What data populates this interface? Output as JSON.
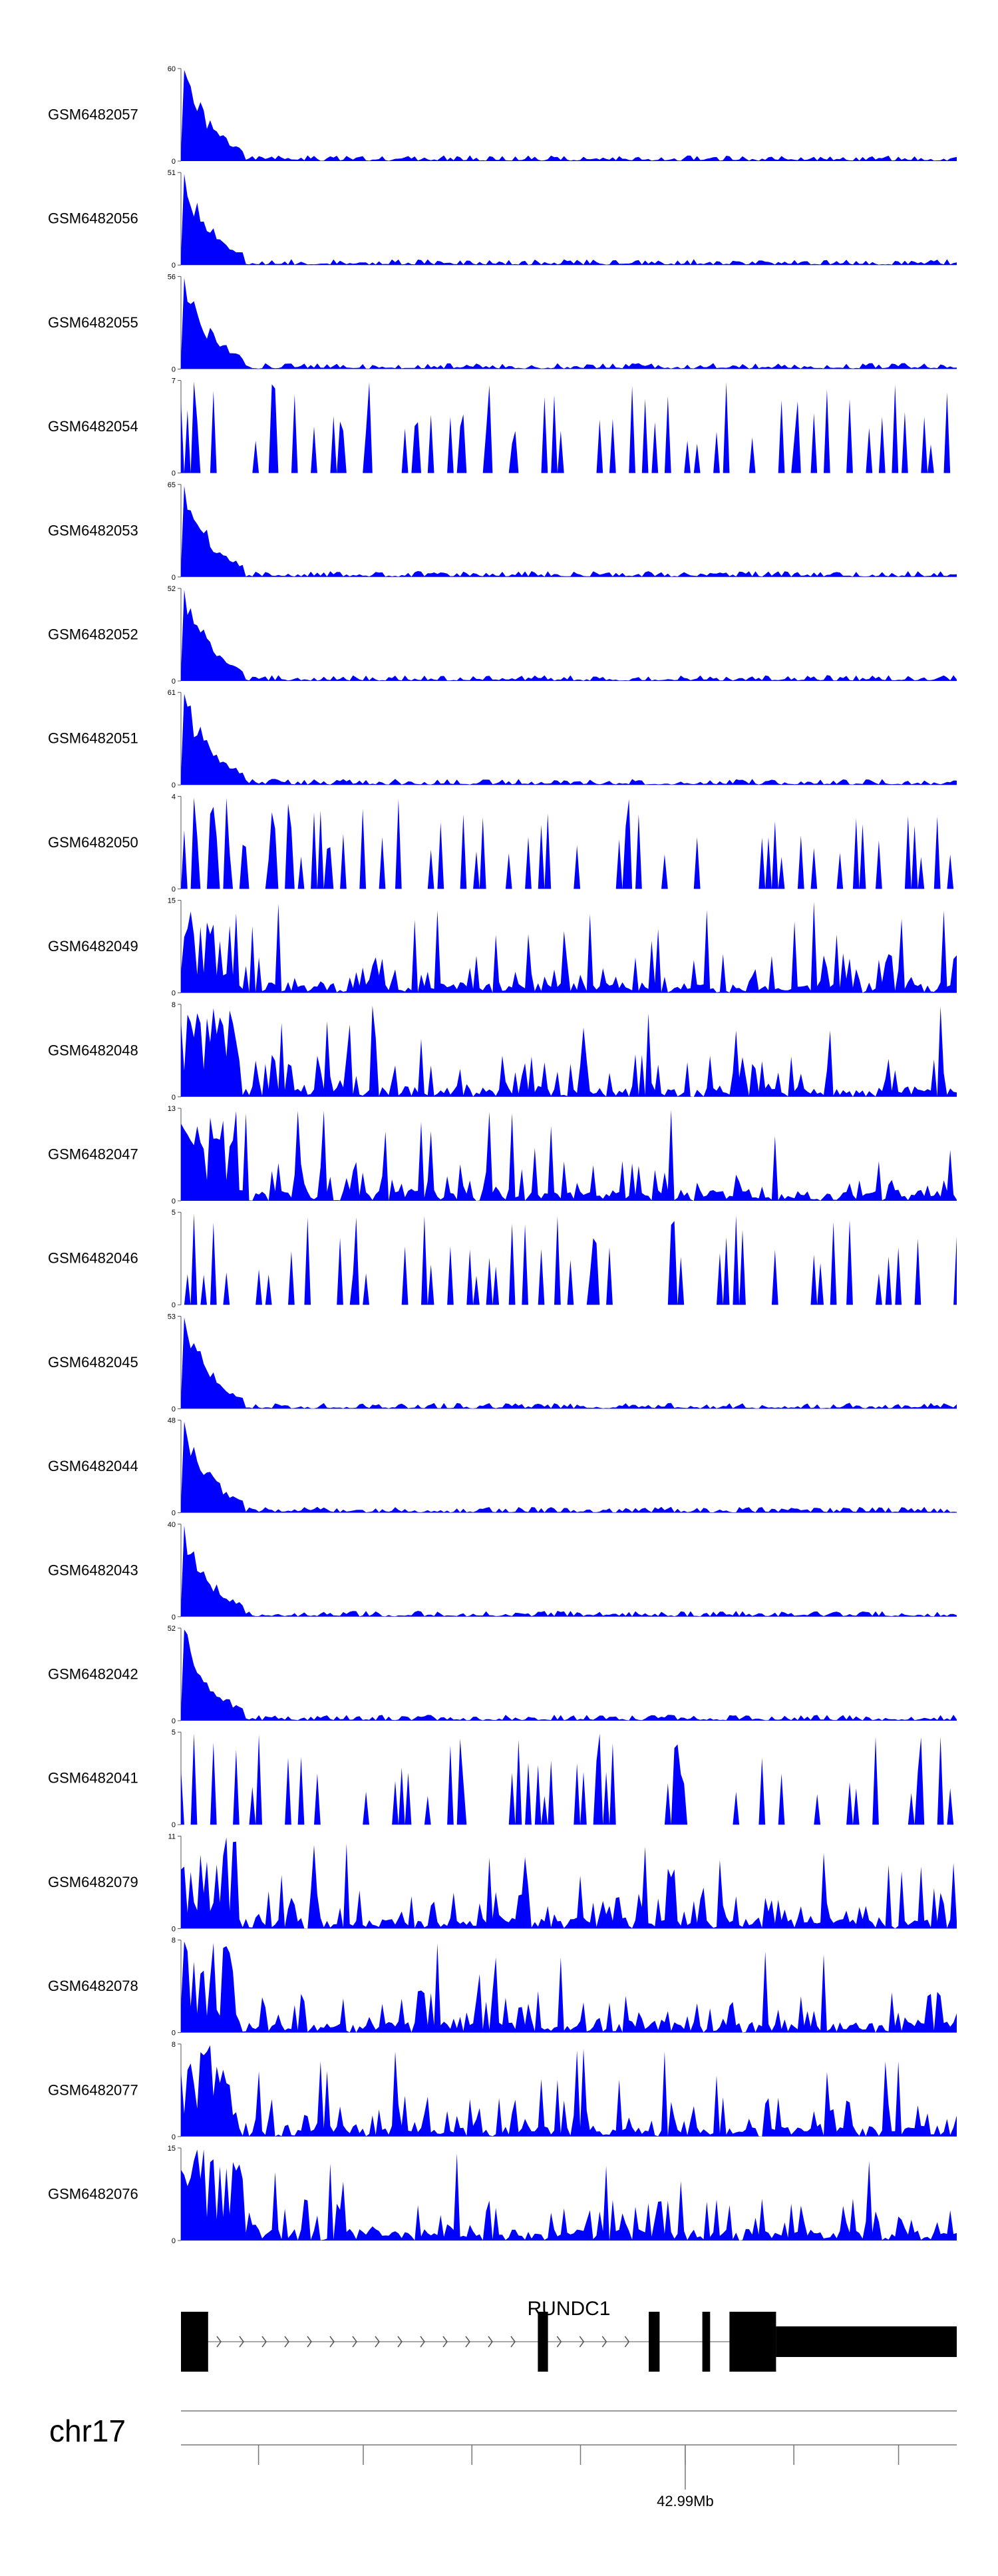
{
  "chart_data": {
    "type": "area",
    "description_free": true,
    "y_min": 0,
    "track_color": "#0000FF",
    "tracks": [
      {
        "name": "GSM6482057",
        "ymax": 60,
        "shape": "early",
        "seed": 11
      },
      {
        "name": "GSM6482056",
        "ymax": 51,
        "shape": "early",
        "seed": 12
      },
      {
        "name": "GSM6482055",
        "ymax": 56,
        "shape": "early",
        "seed": 13
      },
      {
        "name": "GSM6482054",
        "ymax": 7,
        "shape": "spiky",
        "seed": 14
      },
      {
        "name": "GSM6482053",
        "ymax": 65,
        "shape": "early",
        "seed": 15
      },
      {
        "name": "GSM6482052",
        "ymax": 52,
        "shape": "early",
        "seed": 16
      },
      {
        "name": "GSM6482051",
        "ymax": 61,
        "shape": "early",
        "seed": 17
      },
      {
        "name": "GSM6482050",
        "ymax": 4,
        "shape": "spiky",
        "seed": 18
      },
      {
        "name": "GSM6482049",
        "ymax": 15,
        "shape": "mid",
        "seed": 19
      },
      {
        "name": "GSM6482048",
        "ymax": 8,
        "shape": "mid",
        "seed": 20
      },
      {
        "name": "GSM6482047",
        "ymax": 13,
        "shape": "mid",
        "seed": 21
      },
      {
        "name": "GSM6482046",
        "ymax": 5,
        "shape": "spiky",
        "seed": 22
      },
      {
        "name": "GSM6482045",
        "ymax": 53,
        "shape": "early",
        "seed": 23
      },
      {
        "name": "GSM6482044",
        "ymax": 48,
        "shape": "early",
        "seed": 24
      },
      {
        "name": "GSM6482043",
        "ymax": 40,
        "shape": "early",
        "seed": 25
      },
      {
        "name": "GSM6482042",
        "ymax": 52,
        "shape": "early",
        "seed": 26
      },
      {
        "name": "GSM6482041",
        "ymax": 5,
        "shape": "spiky",
        "seed": 27
      },
      {
        "name": "GSM6482079",
        "ymax": 11,
        "shape": "mid",
        "seed": 28
      },
      {
        "name": "GSM6482078",
        "ymax": 8,
        "shape": "mid",
        "seed": 29
      },
      {
        "name": "GSM6482077",
        "ymax": 8,
        "shape": "mid",
        "seed": 30
      },
      {
        "name": "GSM6482076",
        "ymax": 15,
        "shape": "mid",
        "seed": 31
      }
    ],
    "gene": {
      "name": "RUNDC1",
      "strand": "+",
      "exons": [
        {
          "start": 0.0,
          "end": 0.035,
          "type": "coding"
        },
        {
          "start": 0.46,
          "end": 0.473,
          "type": "coding"
        },
        {
          "start": 0.603,
          "end": 0.617,
          "type": "coding"
        },
        {
          "start": 0.672,
          "end": 0.682,
          "type": "coding"
        },
        {
          "start": 0.707,
          "end": 0.767,
          "type": "coding"
        },
        {
          "start": 0.767,
          "end": 1.0,
          "type": "utr"
        }
      ]
    },
    "chromosome": "chr17",
    "axis_label": "42.99Mb",
    "axis_label_tick": 0.65
  }
}
